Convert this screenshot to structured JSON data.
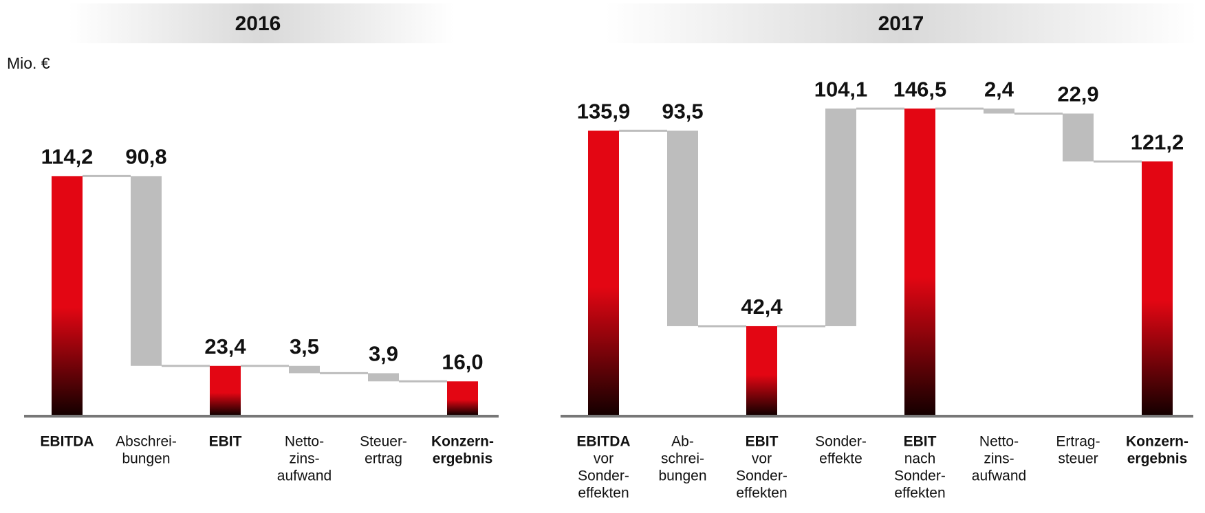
{
  "chart_data": [
    {
      "type": "waterfall",
      "title": "2016",
      "y_label": "Mio. €",
      "categories": [
        [
          "EBITDA"
        ],
        [
          "Abschrei-",
          "bungen"
        ],
        [
          "EBIT"
        ],
        [
          "Netto-",
          "zins-",
          "aufwand"
        ],
        [
          "Steuer-",
          "ertrag"
        ],
        [
          "Konzern-",
          "ergebnis"
        ]
      ],
      "values": [
        114.2,
        -90.8,
        23.4,
        -3.5,
        -3.9,
        16.0
      ],
      "value_labels": [
        "114,2",
        "90,8",
        "23,4",
        "3,5",
        "3,9",
        "16,0"
      ],
      "measure": [
        "total",
        "relative",
        "total",
        "relative",
        "relative",
        "total"
      ],
      "colors": {
        "total": "#e30613",
        "relative": "#bdbdbd"
      },
      "ylim": [
        0,
        160
      ]
    },
    {
      "type": "waterfall",
      "title": "2017",
      "categories": [
        [
          "EBITDA",
          "vor",
          "Sonder-",
          "effekten"
        ],
        [
          "Ab-",
          "schrei-",
          "bungen"
        ],
        [
          "EBIT",
          "vor",
          "Sonder-",
          "effekten"
        ],
        [
          "Sonder-",
          "effekte"
        ],
        [
          "EBIT",
          "nach",
          "Sonder-",
          "effekten"
        ],
        [
          "Netto-",
          "zins-",
          "aufwand"
        ],
        [
          "Ertrag-",
          "steuer"
        ],
        [
          "Konzern-",
          "ergebnis"
        ]
      ],
      "values": [
        135.9,
        -93.5,
        42.4,
        104.1,
        146.5,
        -2.4,
        -22.9,
        121.2
      ],
      "value_labels": [
        "135,9",
        "93,5",
        "42,4",
        "104,1",
        "146,5",
        "2,4",
        "22,9",
        "121,2"
      ],
      "measure": [
        "total",
        "relative",
        "total",
        "relative",
        "total",
        "relative",
        "relative",
        "total"
      ],
      "colors": {
        "total": "#e30613",
        "relative": "#bdbdbd"
      },
      "ylim": [
        0,
        160
      ]
    }
  ]
}
